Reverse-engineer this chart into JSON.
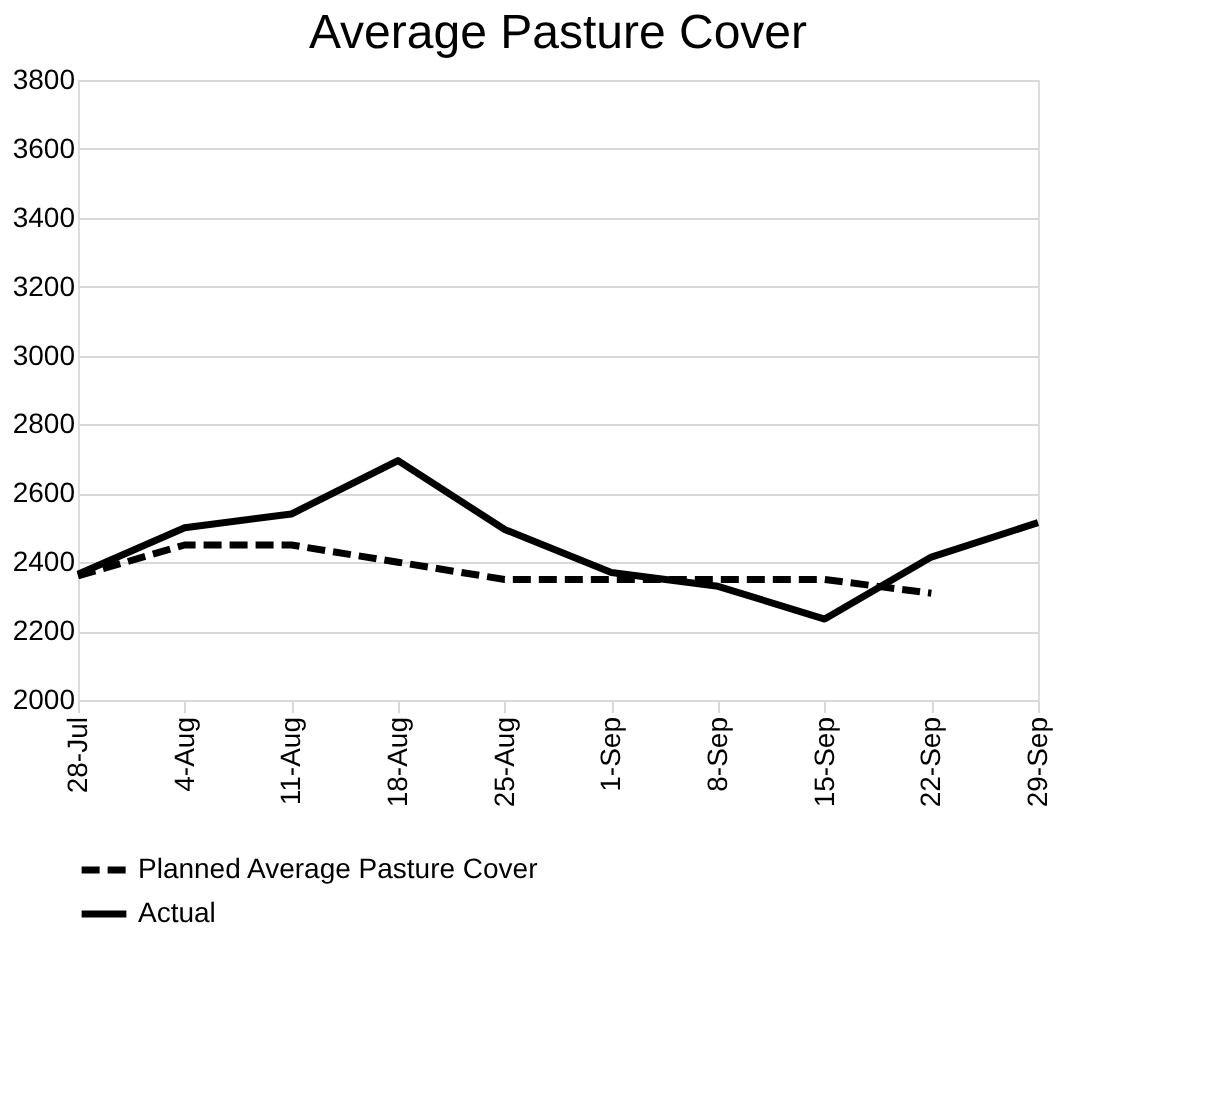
{
  "chart_data": {
    "type": "line",
    "title": "Average Pasture Cover",
    "categories": [
      "28-Jul",
      "4-Aug",
      "11-Aug",
      "18-Aug",
      "25-Aug",
      "1-Sep",
      "8-Sep",
      "15-Sep",
      "22-Sep",
      "29-Sep"
    ],
    "series": [
      {
        "name": "Planned Average Pasture Cover",
        "color": "#000000",
        "line_style": "dashed",
        "values": [
          2360,
          2450,
          2450,
          2400,
          2350,
          2350,
          2350,
          2350,
          2310,
          null
        ]
      },
      {
        "name": "Actual",
        "color": "#000000",
        "line_style": "solid",
        "values": [
          2365,
          2500,
          2540,
          2695,
          2495,
          2370,
          2330,
          2235,
          2415,
          2515
        ]
      }
    ],
    "ylim": [
      2000,
      3800
    ],
    "yticks": [
      2000,
      2200,
      2400,
      2600,
      2800,
      3000,
      3200,
      3400,
      3600,
      3800
    ],
    "grid": "y",
    "legend": "bottom",
    "marker": "none"
  }
}
